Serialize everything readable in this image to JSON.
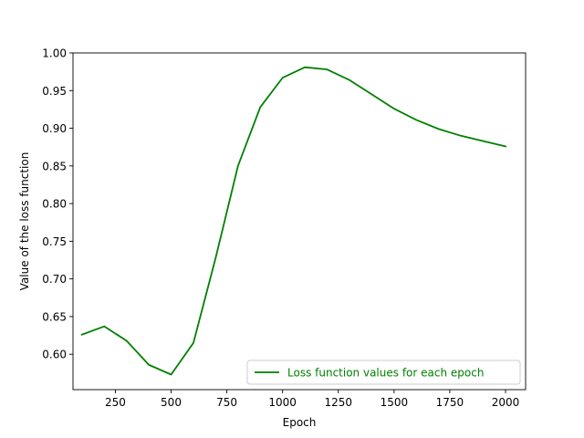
{
  "chart_data": {
    "type": "line",
    "title": "",
    "xlabel": "Epoch",
    "ylabel": "Value of the loss function",
    "xlim": [
      60,
      2090
    ],
    "ylim": [
      0.553,
      1.0
    ],
    "xticks": [
      250,
      500,
      750,
      1000,
      1250,
      1500,
      1750,
      2000
    ],
    "xtick_labels": [
      "250",
      "500",
      "750",
      "1000",
      "1250",
      "1500",
      "1750",
      "2000"
    ],
    "yticks": [
      0.6,
      0.65,
      0.7,
      0.75,
      0.8,
      0.85,
      0.9,
      0.95,
      1.0
    ],
    "ytick_labels": [
      "0.60",
      "0.65",
      "0.70",
      "0.75",
      "0.80",
      "0.85",
      "0.90",
      "0.95",
      "1.00"
    ],
    "grid": false,
    "legend_position": "lower-right",
    "series": [
      {
        "name": "Loss function values for each epoch",
        "color": "#008000",
        "x": [
          100,
          200,
          300,
          400,
          500,
          600,
          700,
          800,
          900,
          1000,
          1100,
          1200,
          1300,
          1400,
          1500,
          1600,
          1700,
          1800,
          1900,
          2000
        ],
        "y": [
          0.626,
          0.637,
          0.618,
          0.586,
          0.573,
          0.615,
          0.728,
          0.85,
          0.928,
          0.967,
          0.981,
          0.978,
          0.964,
          0.945,
          0.926,
          0.911,
          0.899,
          0.89,
          0.883,
          0.876
        ]
      }
    ]
  }
}
